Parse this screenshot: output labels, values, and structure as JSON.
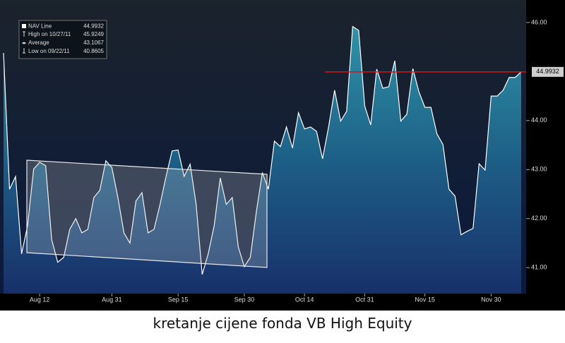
{
  "chart_data": {
    "type": "area",
    "categories": [
      null,
      null,
      null,
      null,
      null,
      null,
      "Aug 12",
      null,
      null,
      null,
      null,
      null,
      null,
      null,
      null,
      null,
      null,
      null,
      "Aug 31",
      null,
      null,
      null,
      null,
      null,
      null,
      null,
      null,
      null,
      null,
      "Sep 15",
      null,
      null,
      null,
      null,
      null,
      null,
      null,
      null,
      null,
      null,
      "Sep 30",
      null,
      null,
      null,
      null,
      null,
      null,
      null,
      null,
      null,
      "Oct 14",
      null,
      null,
      null,
      null,
      null,
      null,
      null,
      null,
      null,
      "Oct 31",
      null,
      null,
      null,
      null,
      null,
      null,
      null,
      null,
      null,
      "Nov 15",
      null,
      null,
      null,
      null,
      null,
      null,
      null,
      null,
      null,
      null,
      "Nov 30",
      null,
      null,
      null,
      null,
      null
    ],
    "series": [
      {
        "name": "NAV Line",
        "color": "#ffffff",
        "values": [
          45.38,
          42.6,
          42.86,
          41.28,
          41.86,
          43.01,
          43.15,
          43.08,
          41.57,
          41.11,
          41.21,
          41.78,
          42.0,
          41.71,
          41.78,
          42.43,
          42.58,
          43.18,
          43.04,
          42.43,
          41.71,
          41.5,
          42.36,
          42.53,
          41.71,
          41.78,
          42.29,
          42.86,
          43.38,
          43.4,
          42.86,
          43.11,
          42.29,
          40.86,
          41.28,
          41.86,
          42.83,
          42.29,
          42.43,
          41.42,
          41.02,
          41.21,
          42.14,
          42.94,
          42.6,
          43.58,
          43.47,
          43.87,
          43.44,
          44.16,
          43.83,
          43.87,
          43.78,
          43.22,
          43.87,
          44.62,
          43.99,
          44.19,
          45.92,
          45.84,
          44.3,
          43.91,
          45.05,
          44.66,
          44.69,
          45.22,
          43.99,
          44.13,
          45.06,
          44.59,
          44.27,
          44.27,
          43.73,
          43.51,
          42.6,
          42.46,
          41.67,
          41.74,
          41.8,
          43.12,
          42.99,
          44.5,
          44.5,
          44.62,
          44.88,
          44.88,
          44.9932
        ]
      }
    ],
    "ylim": [
      40.47,
      46.46
    ],
    "yticks": [
      {
        "value": 41,
        "label": "41.00"
      },
      {
        "value": 42,
        "label": "42.00"
      },
      {
        "value": 43,
        "label": "43.00"
      },
      {
        "value": 44,
        "label": "44.00"
      },
      {
        "value": 46,
        "label": "46.00"
      }
    ],
    "legend": [
      {
        "label": "High on 10/27/11",
        "value": 45.9249
      },
      {
        "label": "Average",
        "value": 43.1067
      },
      {
        "label": "Low on 09/22/11",
        "value": 40.8605
      }
    ],
    "last_price_line_color": "#e01010",
    "caption": "kretanje cijene fonda VB High Equity"
  }
}
